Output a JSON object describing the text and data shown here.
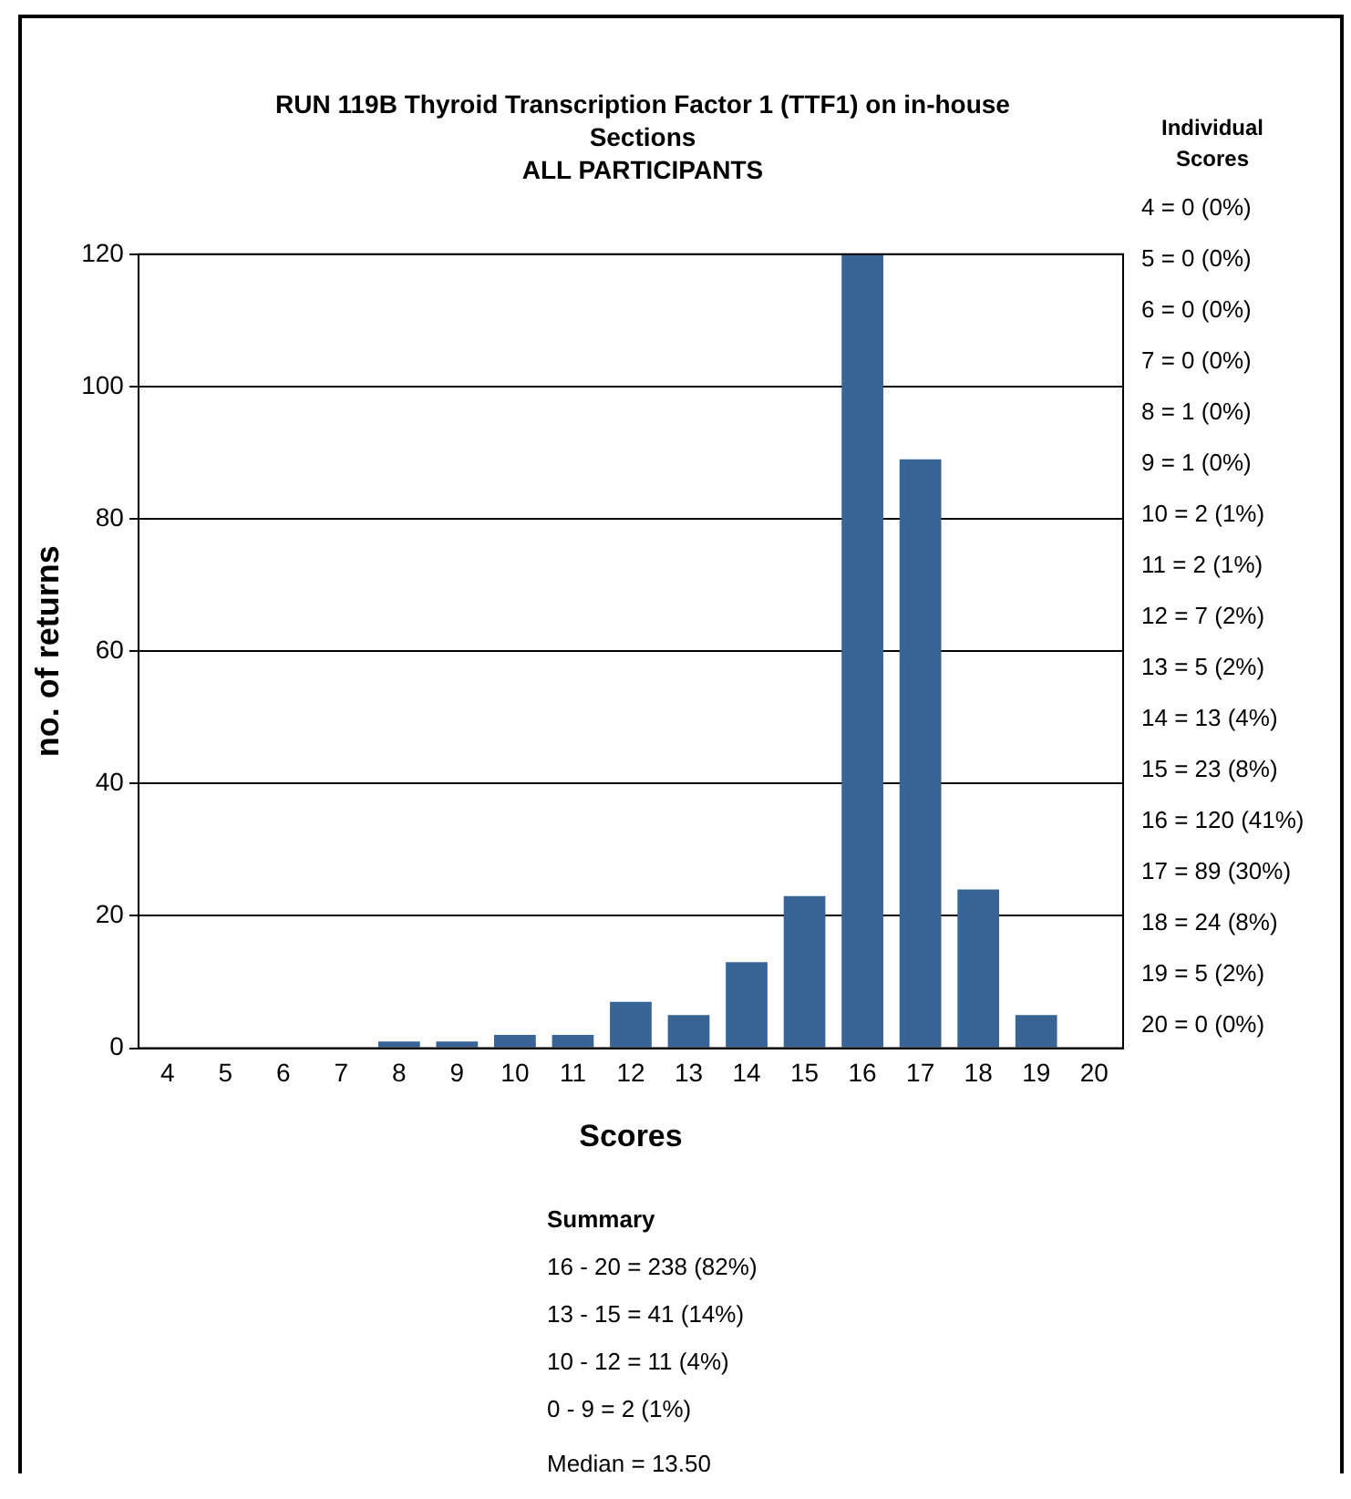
{
  "chart_data": {
    "type": "bar",
    "title": "RUN 119B Thyroid Transcription Factor 1 (TTF1) on in-house Sections",
    "subtitle": "ALL PARTICIPANTS",
    "xlabel": "Scores",
    "ylabel": "no. of returns",
    "categories": [
      "4",
      "5",
      "6",
      "7",
      "8",
      "9",
      "10",
      "11",
      "12",
      "13",
      "14",
      "15",
      "16",
      "17",
      "18",
      "19",
      "20"
    ],
    "values": [
      0,
      0,
      0,
      0,
      1,
      1,
      2,
      2,
      7,
      5,
      13,
      23,
      120,
      89,
      24,
      5,
      0
    ],
    "color": "#386596",
    "ylim": [
      0,
      120
    ],
    "yticks": [
      0,
      20,
      40,
      60,
      80,
      100,
      120
    ],
    "grid": "y",
    "legend": false,
    "annotations": [
      "Individual Scores",
      "4 = 0 (0%)",
      "5 = 0 (0%)",
      "6 = 0 (0%)",
      "7 = 0 (0%)",
      "8 = 1 (0%)",
      "9 = 1 (0%)",
      "10 = 2 (1%)",
      "11 = 2 (1%)",
      "12 = 7 (2%)",
      "13 = 5 (2%)",
      "14 = 13 (4%)",
      "15 = 23 (8%)",
      "16 = 120 (41%)",
      "17 = 89 (30%)",
      "18 = 24 (8%)",
      "19 = 5 (2%)",
      "20 = 0 (0%)",
      "Summary",
      "16 - 20 = 238 (82%)",
      "13 - 15 = 41 (14%)",
      "10 - 12 = 11 (4%)",
      "0 - 9 = 2 (1%)",
      "Median = 13.50"
    ]
  }
}
